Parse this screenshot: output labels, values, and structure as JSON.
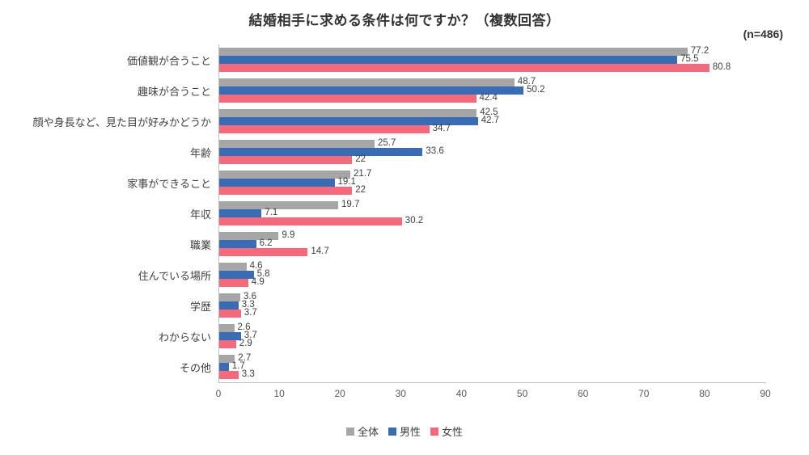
{
  "chart_data": {
    "type": "bar",
    "orientation": "horizontal",
    "title": "結婚相手に求める条件は何ですか？（複数回答）",
    "annotation": "(n=486)",
    "categories": [
      "価値観が合うこと",
      "趣味が合うこと",
      "顔や身長など、見た目が好みかどうか",
      "年齢",
      "家事ができること",
      "年収",
      "職業",
      "住んでいる場所",
      "学歴",
      "わからない",
      "その他"
    ],
    "series": [
      {
        "key": "overall",
        "name": "全体",
        "color": "#a6a6a6",
        "values": [
          77.2,
          48.7,
          42.5,
          25.7,
          21.7,
          19.7,
          9.9,
          4.6,
          3.6,
          2.6,
          2.7
        ]
      },
      {
        "key": "male",
        "name": "男性",
        "color": "#3a6bb5",
        "values": [
          75.5,
          50.2,
          42.7,
          33.6,
          19.1,
          7.1,
          6.2,
          5.8,
          3.3,
          3.7,
          1.7
        ]
      },
      {
        "key": "female",
        "name": "女性",
        "color": "#f4697c",
        "values": [
          80.8,
          42.4,
          34.7,
          22,
          22,
          30.2,
          14.7,
          4.9,
          3.7,
          2.9,
          3.3
        ]
      }
    ],
    "xlim": [
      0,
      90
    ],
    "xticks": [
      0,
      10,
      20,
      30,
      40,
      50,
      60,
      70,
      80,
      90
    ],
    "xlabel": "",
    "ylabel": "",
    "grid": false,
    "legend_position": "bottom"
  }
}
